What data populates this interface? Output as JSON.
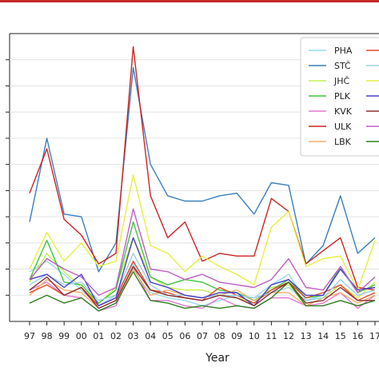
{
  "chart_data": {
    "type": "line",
    "xlabel": "Year",
    "ylabel": "",
    "title": "",
    "categories": [
      "97",
      "98",
      "99",
      "00",
      "01",
      "02",
      "03",
      "04",
      "05",
      "06",
      "07",
      "08",
      "09",
      "10",
      "11",
      "12",
      "13",
      "14",
      "15",
      "16",
      "17"
    ],
    "ylim": [
      0,
      11
    ],
    "grid": "horizontal",
    "legend_placement": "top-right",
    "series": [
      {
        "name": "PHA",
        "color": "#9ad9ef",
        "values": [
          1.9,
          2.3,
          1.8,
          1.2,
          0.6,
          1.0,
          2.2,
          1.1,
          0.9,
          0.8,
          0.6,
          0.8,
          1.0,
          0.9,
          1.4,
          1.8,
          0.8,
          1.0,
          2.0,
          1.1,
          1.7
        ]
      },
      {
        "name": "STČ",
        "color": "#3a7fbd",
        "values": [
          3.8,
          7.0,
          4.1,
          4.0,
          1.9,
          3.0,
          9.7,
          6.0,
          4.8,
          4.6,
          4.6,
          4.8,
          4.9,
          4.1,
          5.3,
          5.2,
          2.2,
          2.9,
          4.8,
          2.6,
          3.2
        ]
      },
      {
        "name": "JHČ",
        "color": "#c6ef4e",
        "values": [
          1.5,
          2.6,
          1.9,
          1.3,
          0.7,
          1.3,
          3.2,
          1.7,
          1.3,
          1.2,
          1.2,
          1.0,
          0.9,
          0.7,
          1.3,
          1.4,
          0.6,
          0.9,
          1.4,
          0.9,
          1.5
        ]
      },
      {
        "name": "PLK",
        "color": "#3fc43f",
        "values": [
          1.6,
          3.1,
          1.5,
          1.4,
          0.7,
          1.2,
          3.8,
          1.7,
          1.4,
          1.6,
          1.5,
          1.2,
          1.1,
          0.8,
          1.2,
          1.6,
          0.9,
          1.0,
          2.1,
          1.1,
          1.4
        ]
      },
      {
        "name": "KVK",
        "color": "#e37ad0",
        "values": [
          1.2,
          1.5,
          1.0,
          0.9,
          0.4,
          0.6,
          2.1,
          0.8,
          0.8,
          0.6,
          0.5,
          0.9,
          0.6,
          0.5,
          0.9,
          0.9,
          0.6,
          0.7,
          1.1,
          0.5,
          1.0
        ]
      },
      {
        "name": "ULK",
        "color": "#cc2424",
        "values": [
          4.9,
          6.6,
          3.9,
          3.3,
          2.2,
          2.6,
          10.5,
          4.8,
          3.2,
          3.8,
          2.3,
          2.6,
          2.5,
          2.5,
          4.7,
          4.2,
          2.2,
          2.7,
          3.2,
          1.3,
          1.2
        ]
      },
      {
        "name": "LBK",
        "color": "#f2b06a",
        "values": [
          1.0,
          1.6,
          1.2,
          1.1,
          0.5,
          0.8,
          2.0,
          1.0,
          1.2,
          1.0,
          0.9,
          1.0,
          1.2,
          0.8,
          1.1,
          1.1,
          0.6,
          0.9,
          1.1,
          0.7,
          1.0
        ]
      },
      {
        "name": "",
        "color": "#e2492b",
        "values": [
          1.1,
          1.4,
          1.0,
          1.3,
          0.6,
          0.9,
          2.3,
          1.2,
          1.1,
          0.9,
          0.8,
          1.3,
          1.0,
          0.7,
          1.2,
          1.5,
          0.9,
          1.1,
          1.4,
          0.8,
          1.1
        ]
      },
      {
        "name": "",
        "color": "#9bd0e0",
        "values": [
          1.4,
          1.8,
          1.4,
          1.5,
          0.8,
          1.0,
          2.6,
          1.4,
          1.0,
          1.0,
          0.9,
          1.0,
          1.0,
          0.9,
          1.1,
          1.3,
          0.8,
          0.9,
          1.6,
          1.0,
          1.2
        ]
      },
      {
        "name": "",
        "color": "#e7ef3f",
        "values": [
          2.0,
          3.4,
          2.3,
          3.0,
          2.1,
          2.3,
          5.6,
          2.9,
          2.6,
          1.9,
          2.5,
          2.1,
          1.8,
          1.4,
          3.6,
          4.2,
          2.1,
          2.4,
          2.5,
          1.2,
          3.1
        ]
      },
      {
        "name": "",
        "color": "#4a3fc7",
        "values": [
          1.6,
          1.8,
          1.3,
          1.8,
          0.6,
          0.9,
          3.2,
          1.5,
          1.3,
          1.0,
          0.9,
          1.1,
          1.1,
          0.6,
          1.4,
          1.6,
          1.0,
          1.0,
          2.0,
          1.2,
          1.3
        ]
      },
      {
        "name": "",
        "color": "#8b3030",
        "values": [
          1.2,
          1.7,
          1.0,
          1.3,
          0.5,
          0.8,
          2.1,
          1.2,
          1.0,
          0.9,
          0.8,
          1.0,
          0.9,
          0.6,
          1.1,
          1.5,
          0.7,
          0.8,
          1.3,
          0.8,
          0.8
        ]
      },
      {
        "name": "",
        "color": "#bf5fc3",
        "values": [
          1.6,
          2.4,
          2.0,
          1.7,
          1.0,
          1.3,
          4.3,
          2.0,
          1.9,
          1.6,
          1.8,
          1.5,
          1.4,
          1.3,
          1.6,
          2.4,
          1.3,
          1.2,
          2.1,
          1.1,
          1.7
        ]
      },
      {
        "name": "",
        "color": "#2e7d1f",
        "values": [
          0.7,
          1.0,
          0.7,
          0.9,
          0.4,
          0.7,
          1.9,
          0.8,
          0.7,
          0.5,
          0.6,
          0.5,
          0.6,
          0.5,
          0.9,
          1.5,
          0.6,
          0.6,
          0.8,
          0.6,
          0.8
        ]
      }
    ]
  }
}
